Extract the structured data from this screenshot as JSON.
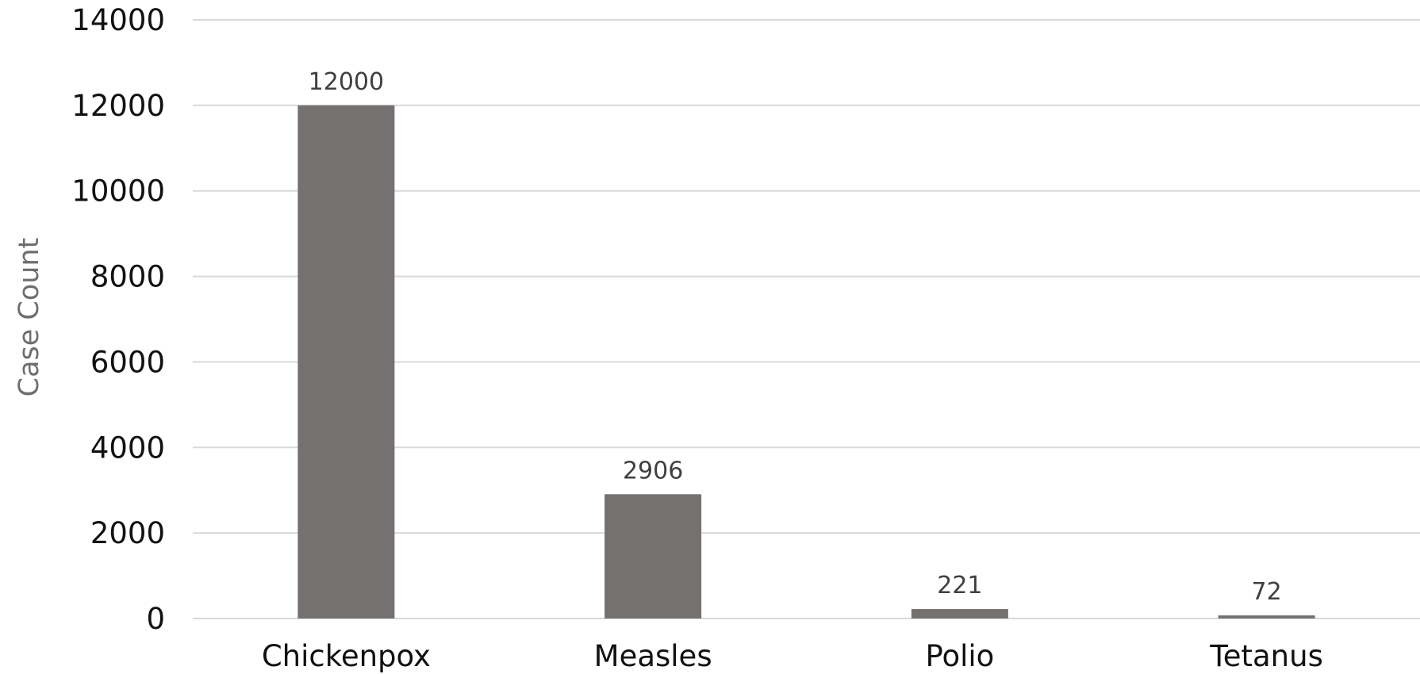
{
  "chart_data": {
    "type": "bar",
    "title": "",
    "xlabel": "",
    "ylabel": "Case Count",
    "categories": [
      "Chickenpox",
      "Measles",
      "Polio",
      "Tetanus"
    ],
    "values": [
      12000,
      2906,
      221,
      72
    ],
    "data_labels": [
      "12000",
      "2906",
      "221",
      "72"
    ],
    "ylim": [
      0,
      14000
    ],
    "yticks": [
      0,
      2000,
      4000,
      6000,
      8000,
      10000,
      12000,
      14000
    ],
    "ytick_labels": [
      "0",
      "2000",
      "4000",
      "6000",
      "8000",
      "10000",
      "12000",
      "14000"
    ],
    "grid": true,
    "legend": "none",
    "bar_color": "#757170",
    "grid_color": "#d9d9d9"
  }
}
